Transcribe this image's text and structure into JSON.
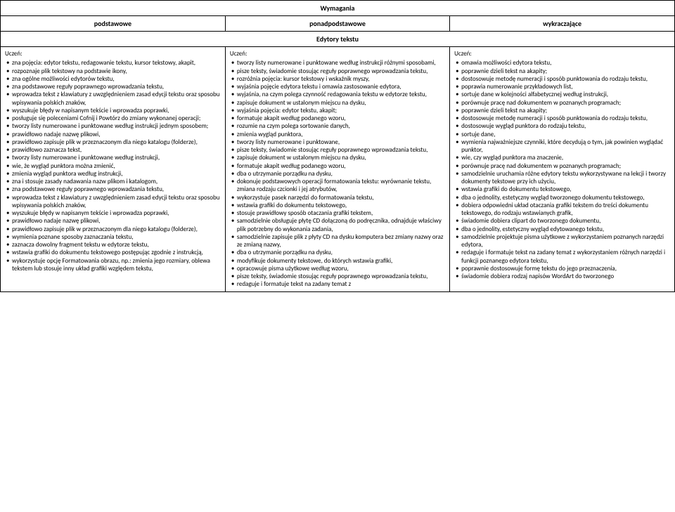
{
  "title": "Wymagania",
  "headers": [
    "podstawowe",
    "ponadpodstawowe",
    "wykraczające"
  ],
  "section": "Edytory tekstu",
  "columns": [
    {
      "lead": "Uczeń:",
      "items": [
        "zna pojęcia: edytor tekstu, redagowanie tekstu, kursor tekstowy, akapit,",
        "rozpoznaje plik tekstowy na podstawie ikony,",
        "zna ogólne możliwości edytorów tekstu,",
        "zna podstawowe reguły poprawnego wprowadzania tekstu,",
        "wprowadza tekst z klawiatury z uwzględnieniem zasad edycji tekstu oraz sposobu wpisywania polskich znaków,",
        "wyszukuje błędy w napisanym tekście i wprowadza poprawki,",
        "posługuje się poleceniami Cofnij i Powtórz do zmiany wykonanej operacji;",
        "tworzy listy numerowane i punktowane według instrukcji jednym sposobem;",
        "prawidłowo nadaje nazwę plikowi,",
        "prawidłowo zapisuje plik w przeznaczonym dla niego katalogu (folderze),",
        "prawidłowo zaznacza tekst,",
        "tworzy listy numerowane i punktowane według instrukcji,",
        "wie, że wygląd punktora można zmienić,",
        "zmienia wygląd punktora według instrukcji,",
        "zna i stosuje zasady nadawania nazw plikom i katalogom,",
        "zna podstawowe reguły poprawnego wprowadzania tekstu,",
        "wprowadza tekst z klawiatury z uwzględnieniem zasad edycji tekstu oraz sposobu wpisywania polskich znaków,",
        "wyszukuje błędy w napisanym tekście i wprowadza poprawki,",
        "prawidłowo nadaje nazwę plikowi,",
        "prawidłowo zapisuje plik w przeznaczonym dla niego katalogu (folderze),",
        "wymienia poznane sposoby zaznaczania tekstu,",
        "zaznacza dowolny fragment tekstu w edytorze tekstu,",
        "wstawia grafiki do dokumentu tekstowego postępując zgodnie z instrukcją,",
        "wykorzystuje opcję Formatowania obrazu, np.: zmienia jego rozmiary, oblewa tekstem lub stosuje inny układ grafiki względem tekstu,"
      ]
    },
    {
      "lead": "Uczeń:",
      "items": [
        "tworzy listy numerowane i punktowane według instrukcji różnymi sposobami,",
        "pisze teksty, świadomie stosując reguły poprawnego wprowadzania tekstu,",
        "rozróżnia pojęcia: kursor tekstowy i wskaźnik myszy,",
        "wyjaśnia pojęcie edytora tekstu i omawia zastosowanie edytora,",
        "wyjaśnia, na czym polega czynność redagowania tekstu w edytorze tekstu,",
        "zapisuje dokument w ustalonym miejscu na dysku,",
        "wyjaśnia pojęcia: edytor tekstu, akapit;",
        "formatuje akapit według podanego wzoru,",
        "rozumie na czym polega sortowanie danych,",
        "zmienia wygląd punktora,",
        "tworzy listy numerowane i punktowane,",
        "pisze teksty, świadomie stosując reguły poprawnego wprowadzania tekstu,",
        "zapisuje dokument w ustalonym miejscu na dysku,",
        "formatuje akapit według podanego wzoru,",
        "dba o utrzymanie porządku na dysku,",
        "dokonuje podstawowych operacji formatowania tekstu: wyrównanie tekstu, zmiana rodzaju czcionki i jej atrybutów,",
        "wykorzystuje pasek narzędzi do formatowania tekstu,",
        "wstawia grafiki do dokumentu tekstowego,",
        "stosuje prawidłowy sposób otaczania grafiki tekstem,",
        "samodzielnie obsługuje płytę CD dołączoną do podręcznika, odnajduje właściwy plik potrzebny do wykonania zadania,",
        "samodzielnie zapisuje plik z płyty CD na dysku komputera bez zmiany nazwy oraz ze zmianą nazwy,",
        "dba o utrzymanie porządku na dysku,",
        "modyfikuje dokumenty tekstowe,  do których wstawia grafiki,",
        "opracowuje pisma użytkowe według wzoru,",
        "pisze teksty, świadomie stosując reguły poprawnego wprowadzania tekstu,",
        "redaguje i formatuje tekst na zadany temat z"
      ]
    },
    {
      "lead": "Uczeń:",
      "items": [
        "omawia możliwości edytora tekstu,",
        "poprawnie dzieli tekst na akapity;",
        "dostosowuje metodę numeracji i sposób punktowania do rodzaju tekstu,",
        "poprawia numerowanie przykładowych list,",
        "sortuje dane w kolejności alfabetycznej według instrukcji,",
        "porównuje pracę nad dokumentem w poznanych programach;",
        "poprawnie dzieli tekst na akapity;",
        "dostosowuje metodę numeracji i sposób punktowania do rodzaju tekstu,",
        "dostosowuje wygląd punktora do rodzaju tekstu,",
        "sortuje dane,",
        "wymienia najważniejsze czynniki, które decydują o tym, jak powinien wyglądać punktor,",
        "wie, czy wygląd punktora ma znaczenie,",
        "porównuje pracę nad dokumentem w poznanych programach;",
        "samodzielnie uruchamia różne edytory tekstu wykorzystywane na lekcji i tworzy dokumenty tekstowe przy ich użyciu,",
        "wstawia grafiki do dokumentu tekstowego,",
        "dba o jednolity, estetyczny wygląd tworzonego dokumentu tekstowego,",
        "dobiera odpowiedni układ otaczania grafiki tekstem do treści dokumentu tekstowego, do rodzaju wstawianych grafik,",
        "świadomie dobiera clipart do tworzonego dokumentu,",
        "dba o jednolity, estetyczny wygląd edytowanego tekstu,",
        "samodzielnie projektuje pisma użytkowe z wykorzystaniem poznanych narzędzi edytora,",
        "redaguje i formatuje tekst na zadany temat z wykorzystaniem różnych narzędzi i funkcji poznanego edytora tekstu,",
        "poprawnie dostosowuje formę tekstu do jego przeznaczenia,",
        "świadomie dobiera rodzaj napisów WordArt do tworzonego"
      ]
    }
  ]
}
